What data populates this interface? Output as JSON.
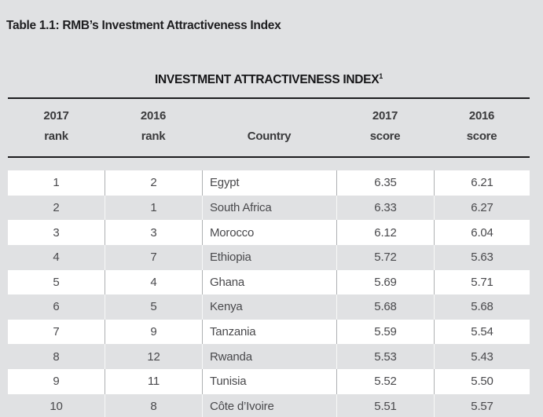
{
  "page": {
    "caption": "Table 1.1: RMB’s Investment Attractiveness Index",
    "heading": "INVESTMENT ATTRACTIVENESS INDEX",
    "heading_footnote_marker": "1"
  },
  "table": {
    "columns": [
      {
        "line1": "2017",
        "line2": "rank"
      },
      {
        "line1": "2016",
        "line2": "rank"
      },
      {
        "line1": "",
        "line2": "Country"
      },
      {
        "line1": "2017",
        "line2": "score"
      },
      {
        "line1": "2016",
        "line2": "score"
      }
    ],
    "rows": [
      {
        "rank_2017": "1",
        "rank_2016": "2",
        "country": "Egypt",
        "score_2017": "6.35",
        "score_2016": "6.21"
      },
      {
        "rank_2017": "2",
        "rank_2016": "1",
        "country": "South Africa",
        "score_2017": "6.33",
        "score_2016": "6.27"
      },
      {
        "rank_2017": "3",
        "rank_2016": "3",
        "country": "Morocco",
        "score_2017": "6.12",
        "score_2016": "6.04"
      },
      {
        "rank_2017": "4",
        "rank_2016": "7",
        "country": "Ethiopia",
        "score_2017": "5.72",
        "score_2016": "5.63"
      },
      {
        "rank_2017": "5",
        "rank_2016": "4",
        "country": "Ghana",
        "score_2017": "5.69",
        "score_2016": "5.71"
      },
      {
        "rank_2017": "6",
        "rank_2016": "5",
        "country": "Kenya",
        "score_2017": "5.68",
        "score_2016": "5.68"
      },
      {
        "rank_2017": "7",
        "rank_2016": "9",
        "country": "Tanzania",
        "score_2017": "5.59",
        "score_2016": "5.54"
      },
      {
        "rank_2017": "8",
        "rank_2016": "12",
        "country": "Rwanda",
        "score_2017": "5.53",
        "score_2016": "5.43"
      },
      {
        "rank_2017": "9",
        "rank_2016": "11",
        "country": "Tunisia",
        "score_2017": "5.52",
        "score_2016": "5.50"
      },
      {
        "rank_2017": "10",
        "rank_2016": "8",
        "country": "Côte d’Ivoire",
        "score_2017": "5.51",
        "score_2016": "5.57"
      }
    ]
  },
  "colors": {
    "page_background": "#e0e1e3",
    "row_white": "#ffffff",
    "row_gray": "#e0e1e3",
    "rule_black": "#1c1c1e",
    "caption_text": "#1e1e20",
    "header_text": "#3a3a3c",
    "cell_text": "#49494c"
  }
}
